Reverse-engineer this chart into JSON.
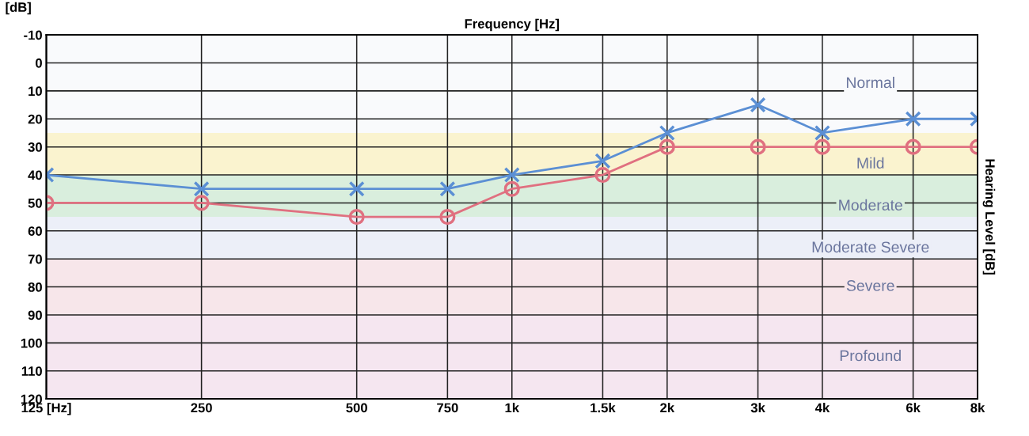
{
  "chart_data": {
    "type": "line",
    "xlabel": "Frequency [Hz]",
    "ylabel": "[dB]",
    "y2label": "Hearing Level [dB]",
    "log": "x",
    "x": [
      125,
      250,
      500,
      750,
      1000,
      1500,
      2000,
      3000,
      4000,
      6000,
      8000
    ],
    "series": [
      {
        "color": "#5b8fd4",
        "marker": "cross",
        "values": [
          40,
          45,
          45,
          45,
          40,
          35,
          25,
          15,
          25,
          20,
          20
        ]
      },
      {
        "color": "#e07080",
        "marker": "circle",
        "values": [
          50,
          50,
          55,
          55,
          45,
          40,
          30,
          30,
          30,
          30,
          30
        ]
      }
    ],
    "xlim": [
      125,
      8000
    ],
    "xticks": [
      {
        "value": 125,
        "label": "125 [Hz]"
      },
      250,
      500,
      750,
      {
        "value": 1000,
        "label": "1k"
      },
      {
        "value": 1500,
        "label": "1.5k"
      },
      {
        "value": 2000,
        "label": "2k"
      },
      {
        "value": 3000,
        "label": "3k"
      },
      {
        "value": 4000,
        "label": "4k"
      },
      {
        "value": 6000,
        "label": "6k"
      },
      {
        "value": 8000,
        "label": "8k"
      }
    ],
    "ylim": [
      120,
      -10
    ],
    "yticks": [
      -10,
      0,
      10,
      20,
      30,
      40,
      50,
      60,
      70,
      80,
      90,
      100,
      110,
      120
    ],
    "grid": true,
    "line_style": "solid",
    "bands": [
      {
        "axis": "y",
        "from": -10,
        "to": 25,
        "label": "Normal",
        "color": "#f9fafc"
      },
      {
        "axis": "y",
        "from": 25,
        "to": 40,
        "label": "Mild",
        "color": "#faf3cf"
      },
      {
        "axis": "y",
        "from": 40,
        "to": 55,
        "label": "Moderate",
        "color": "#d9eedd"
      },
      {
        "axis": "y",
        "from": 55,
        "to": 70,
        "label": "Moderate Severe",
        "color": "#eceff8"
      },
      {
        "axis": "y",
        "from": 70,
        "to": 90,
        "label": "Severe",
        "color": "#f7e6ea"
      },
      {
        "axis": "y",
        "from": 90,
        "to": 120,
        "label": "Profound",
        "color": "#f5e6f0"
      }
    ]
  }
}
